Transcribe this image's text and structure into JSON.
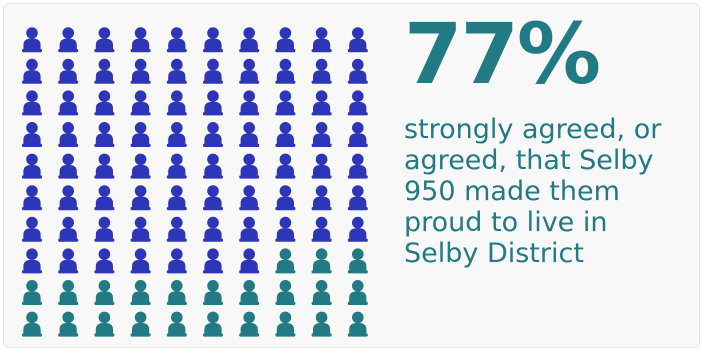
{
  "chart_data": {
    "type": "pictogram",
    "total": 100,
    "value": 77,
    "unit": "percent",
    "rows": 10,
    "columns": 10,
    "fill_order": "row-major from top-left",
    "colors": {
      "filled": "#2d36b8",
      "remaining": "#227a84",
      "text": "#227a84"
    },
    "headline": "77%",
    "caption_lines": [
      "strongly agreed, or",
      "agreed, that Selby",
      "950 made them",
      "proud to live in",
      "Selby District"
    ]
  }
}
